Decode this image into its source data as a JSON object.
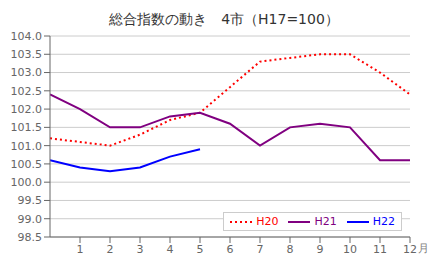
{
  "chart_data": {
    "type": "line",
    "title": "総合指数の動き　4市（H17=100）",
    "x_label": "月",
    "x": [
      0,
      1,
      2,
      3,
      4,
      5,
      6,
      7,
      8,
      9,
      10,
      11,
      12
    ],
    "series": [
      {
        "name": "H20",
        "color": "#ff0000",
        "line_style": "dotted",
        "values": [
          101.2,
          101.1,
          101.0,
          101.3,
          101.7,
          101.9,
          102.6,
          103.3,
          103.4,
          103.5,
          103.5,
          103.0,
          102.4
        ]
      },
      {
        "name": "H21",
        "color": "#800080",
        "line_style": "solid",
        "values": [
          102.4,
          102.0,
          101.5,
          101.5,
          101.8,
          101.9,
          101.6,
          101.0,
          101.5,
          101.6,
          101.5,
          100.6,
          100.6
        ]
      },
      {
        "name": "H22",
        "color": "#0000ff",
        "line_style": "solid",
        "values": [
          100.6,
          100.4,
          100.3,
          100.4,
          100.7,
          100.9,
          null,
          null,
          null,
          null,
          null,
          null,
          null
        ]
      }
    ],
    "xlim": [
      0,
      12
    ],
    "xticks": [
      1,
      2,
      3,
      4,
      5,
      6,
      7,
      8,
      9,
      10,
      11,
      12
    ],
    "ylim": [
      98.5,
      104.0
    ],
    "yticks": [
      98.5,
      {
        "value": 99.0,
        "label": "99.0"
      },
      99.5,
      {
        "value": 100.0,
        "label": "100.0"
      },
      100.5,
      {
        "value": 101.0,
        "label": "101.0"
      },
      101.5,
      {
        "value": 102.0,
        "label": "102.0"
      },
      102.5,
      {
        "value": 103.0,
        "label": "103.0"
      },
      103.5,
      {
        "value": 104.0,
        "label": "104.0"
      }
    ],
    "grid": true,
    "legend": "lower right"
  }
}
